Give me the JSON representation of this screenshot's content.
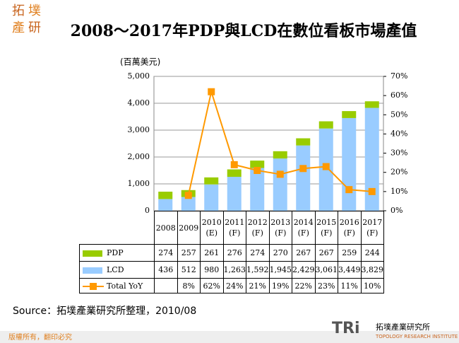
{
  "header": {
    "logo": [
      "拓",
      "墣",
      "產",
      "研"
    ],
    "title": "2008～2017年PDP與LCD在數位看板市場產值"
  },
  "chart_data": {
    "type": "bar",
    "y_label": "(百萬美元)",
    "categories": [
      "2008",
      "2009",
      "2010\n(E)",
      "2011\n(F)",
      "2012\n(F)",
      "2013\n(F)",
      "2014\n(F)",
      "2015\n(F)",
      "2016\n(F)",
      "2017\n(F)"
    ],
    "series": [
      {
        "name": "PDP",
        "color": "#99cc00",
        "values": [
          274,
          257,
          261,
          276,
          274,
          270,
          267,
          267,
          259,
          244
        ]
      },
      {
        "name": "LCD",
        "color": "#99ccff",
        "values": [
          436,
          512,
          980,
          1263,
          1592,
          1945,
          2429,
          3061,
          3449,
          3829
        ],
        "value_labels": [
          "436",
          "512",
          "980",
          "1,263",
          "1,592",
          "1,945",
          "2,429",
          "3,061",
          "3,449",
          "3,829"
        ]
      },
      {
        "name": "Total YoY",
        "type": "line",
        "axis": "y2",
        "color": "#ff9900",
        "values": [
          null,
          8,
          62,
          24,
          21,
          19,
          22,
          23,
          11,
          10
        ],
        "value_labels": [
          null,
          "8%",
          "62%",
          "24%",
          "21%",
          "19%",
          "22%",
          "23%",
          "11%",
          "10%"
        ]
      }
    ],
    "ylim": [
      0,
      5000
    ],
    "yticks": [
      0,
      {
        "value": 1000,
        "label": "1,000"
      },
      {
        "value": 2000,
        "label": "2,000"
      },
      {
        "value": 3000,
        "label": "3,000"
      },
      {
        "value": 4000,
        "label": "4,000"
      },
      {
        "value": 5000,
        "label": "5,000"
      }
    ],
    "y2lim": [
      0,
      70
    ],
    "y2ticks": [
      {
        "value": 0,
        "label": "0%"
      },
      {
        "value": 10,
        "label": "10%"
      },
      {
        "value": 20,
        "label": "20%"
      },
      {
        "value": 30,
        "label": "30%"
      },
      {
        "value": 40,
        "label": "40%"
      },
      {
        "value": 50,
        "label": "50%"
      },
      {
        "value": 60,
        "label": "60%"
      },
      {
        "value": 70,
        "label": "70%"
      }
    ]
  },
  "source": "Source：拓墣產業研究所整理，2010/08",
  "footer": {
    "copyright": "版權所有，翻印必究",
    "brand": "TRi",
    "org": "拓墣產業研究所",
    "org_en": "TOPOLOGY RESEARCH INSTITUTE"
  }
}
